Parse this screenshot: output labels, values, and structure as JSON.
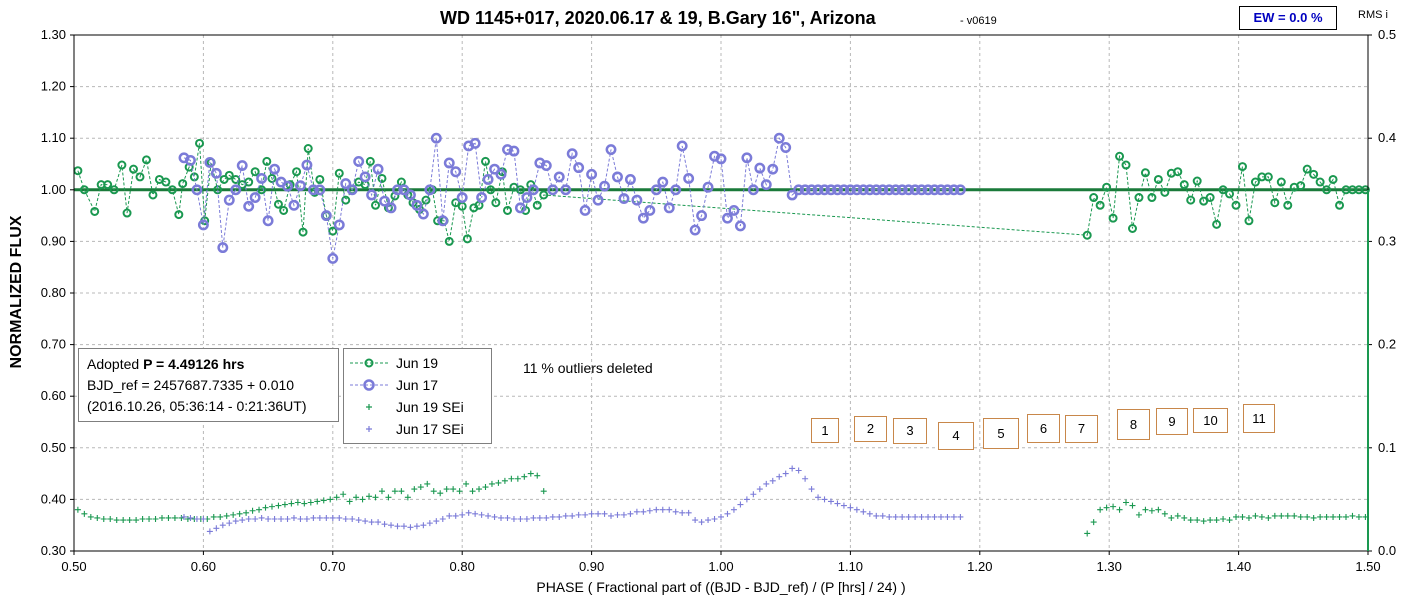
{
  "chart_data": {
    "type": "scatter",
    "title": "WD 1145+017, 2020.06.17 & 19, B.Gary 16\", Arizona",
    "title_suffix": "-  v0619",
    "xlabel": "PHASE ( Fractional part of ((BJD - BJD_ref) / (P [hrs] / 24) )",
    "ylabel": "NORMALIZED FLUX",
    "y2label": "RMS i",
    "xlim": [
      0.5,
      1.5
    ],
    "ylim": [
      0.3,
      1.3
    ],
    "y2lim": [
      0.0,
      0.5
    ],
    "x_ticks": [
      "0.50",
      "0.60",
      "0.70",
      "0.80",
      "0.90",
      "1.00",
      "1.10",
      "1.20",
      "1.30",
      "1.40",
      "1.50"
    ],
    "y_ticks": [
      "0.30",
      "0.40",
      "0.50",
      "0.60",
      "0.70",
      "0.80",
      "0.90",
      "1.00",
      "1.10",
      "1.20",
      "1.30"
    ],
    "y2_ticks": [
      "0.0",
      "0.05",
      "0.1",
      "0.15",
      "0.2",
      "0.25",
      "0.3",
      "0.35",
      "0.4",
      "0.45",
      "0.5"
    ],
    "grid": true,
    "reference_line": 1.0,
    "ew_label": "EW = 0.0 %",
    "outliers_note": "11 % outliers deleted",
    "info": {
      "line1_prefix": "Adopted ",
      "line1_bold": "P = 4.49126 hrs",
      "line2": "BJD_ref = 2457687.7335 + 0.010",
      "line3": "(2016.10.26, 05:36:14 - 0:21:36UT)"
    },
    "legend": {
      "position": "center-left",
      "items": [
        {
          "label": "Jun 19",
          "color": "#1a9850",
          "symbol": "circle-dashed"
        },
        {
          "label": "Jun 17",
          "color": "#7b7bd8",
          "symbol": "circle-dashed-thick"
        },
        {
          "label": "Jun 19 SEi",
          "color": "#1a9850",
          "symbol": "plus"
        },
        {
          "label": "Jun 17 SEi",
          "color": "#7b7bd8",
          "symbol": "plus"
        }
      ]
    },
    "segment_labels": [
      "1",
      "2",
      "3",
      "4",
      "5",
      "6",
      "7",
      "8",
      "9",
      "10",
      "11"
    ],
    "series": [
      {
        "name": "Jun 19",
        "color": "#1a9850",
        "x": [
          0.503,
          0.508,
          0.516,
          0.521,
          0.526,
          0.531,
          0.537,
          0.541,
          0.546,
          0.551,
          0.556,
          0.561,
          0.566,
          0.571,
          0.576,
          0.581,
          0.584,
          0.589,
          0.593,
          0.597,
          0.601,
          0.606,
          0.611,
          0.616,
          0.62,
          0.625,
          0.63,
          0.635,
          0.64,
          0.645,
          0.649,
          0.653,
          0.658,
          0.662,
          0.667,
          0.672,
          0.677,
          0.681,
          0.686,
          0.69,
          0.695,
          0.7,
          0.705,
          0.71,
          0.715,
          0.72,
          0.725,
          0.729,
          0.733,
          0.738,
          0.743,
          0.748,
          0.753,
          0.758,
          0.762,
          0.767,
          0.772,
          0.777,
          0.781,
          0.786,
          0.79,
          0.795,
          0.8,
          0.804,
          0.809,
          0.813,
          0.818,
          0.822,
          0.826,
          0.831,
          0.835,
          0.84,
          0.845,
          0.849,
          0.853,
          0.858,
          0.863,
          1.283,
          1.288,
          1.293,
          1.298,
          1.303,
          1.308,
          1.313,
          1.318,
          1.323,
          1.328,
          1.333,
          1.338,
          1.343,
          1.348,
          1.353,
          1.358,
          1.363,
          1.368,
          1.373,
          1.378,
          1.383,
          1.388,
          1.393,
          1.398,
          1.403,
          1.408,
          1.413,
          1.418,
          1.423,
          1.428,
          1.433,
          1.438,
          1.443,
          1.448,
          1.453,
          1.458,
          1.463,
          1.468,
          1.473,
          1.478,
          1.483,
          1.488,
          1.493,
          1.498
        ],
        "y": [
          1.037,
          1.0,
          0.958,
          1.01,
          1.01,
          1.0,
          1.048,
          0.955,
          1.04,
          1.025,
          1.058,
          0.99,
          1.02,
          1.015,
          1.0,
          0.952,
          1.012,
          1.044,
          1.025,
          1.09,
          0.94,
          1.053,
          1.0,
          1.02,
          1.028,
          1.02,
          1.01,
          1.015,
          1.035,
          1.0,
          1.055,
          1.022,
          0.972,
          0.96,
          1.01,
          1.035,
          0.918,
          1.08,
          0.995,
          1.02,
          0.95,
          0.92,
          1.032,
          0.98,
          1.0,
          1.015,
          1.01,
          1.055,
          0.97,
          1.022,
          0.965,
          0.988,
          1.015,
          0.99,
          0.975,
          0.962,
          0.98,
          1.0,
          0.94,
          0.94,
          0.9,
          0.975,
          0.968,
          0.905,
          0.965,
          0.97,
          1.055,
          1.0,
          0.975,
          1.035,
          0.96,
          1.005,
          1.0,
          0.96,
          1.01,
          0.97,
          0.99,
          0.912,
          0.985,
          0.97,
          1.005,
          0.945,
          1.065,
          1.048,
          0.925,
          0.985,
          1.033,
          0.985,
          1.02,
          0.995,
          1.032,
          1.035,
          1.01,
          0.98,
          1.017,
          0.978,
          0.985,
          0.933,
          1.0,
          0.992,
          0.97,
          1.045,
          0.94,
          1.015,
          1.025,
          1.025,
          0.975,
          1.015,
          0.97,
          1.005,
          1.008,
          1.04,
          1.03,
          1.015,
          1.0,
          1.02,
          0.97,
          1.0,
          1.0,
          1.0,
          1.0
        ],
        "markers": "circle-dashed"
      },
      {
        "name": "Jun 17",
        "color": "#7b7bd8",
        "x": [
          0.585,
          0.59,
          0.595,
          0.6,
          0.605,
          0.61,
          0.615,
          0.62,
          0.625,
          0.63,
          0.635,
          0.64,
          0.645,
          0.65,
          0.655,
          0.66,
          0.665,
          0.67,
          0.675,
          0.68,
          0.685,
          0.69,
          0.695,
          0.7,
          0.705,
          0.71,
          0.715,
          0.72,
          0.725,
          0.73,
          0.735,
          0.74,
          0.745,
          0.75,
          0.755,
          0.76,
          0.765,
          0.77,
          0.775,
          0.78,
          0.785,
          0.79,
          0.795,
          0.8,
          0.805,
          0.81,
          0.815,
          0.82,
          0.825,
          0.83,
          0.835,
          0.84,
          0.845,
          0.85,
          0.855,
          0.86,
          0.865,
          0.87,
          0.875,
          0.88,
          0.885,
          0.89,
          0.895,
          0.9,
          0.905,
          0.91,
          0.915,
          0.92,
          0.925,
          0.93,
          0.935,
          0.94,
          0.945,
          0.95,
          0.955,
          0.96,
          0.965,
          0.97,
          0.975,
          0.98,
          0.985,
          0.99,
          0.995,
          1.0,
          1.005,
          1.01,
          1.015,
          1.02,
          1.025,
          1.03,
          1.035,
          1.04,
          1.045,
          1.05,
          1.055,
          1.06,
          1.065,
          1.07,
          1.075,
          1.08,
          1.085,
          1.09,
          1.095,
          1.1,
          1.105,
          1.11,
          1.115,
          1.12,
          1.125,
          1.13,
          1.135,
          1.14,
          1.145,
          1.15,
          1.155,
          1.16,
          1.165,
          1.17,
          1.175,
          1.18,
          1.185
        ],
        "y": [
          1.062,
          1.057,
          1.0,
          0.932,
          1.053,
          1.032,
          0.888,
          0.98,
          1.0,
          1.047,
          0.968,
          0.985,
          1.022,
          0.94,
          1.04,
          1.015,
          1.007,
          0.97,
          1.008,
          1.048,
          1.0,
          1.0,
          0.95,
          0.867,
          0.932,
          1.012,
          1.0,
          1.055,
          1.025,
          0.99,
          1.04,
          0.978,
          0.965,
          1.0,
          1.0,
          0.99,
          0.97,
          0.953,
          1.0,
          1.1,
          0.94,
          1.052,
          1.035,
          0.985,
          1.085,
          1.09,
          0.985,
          1.02,
          1.04,
          1.03,
          1.078,
          1.075,
          0.965,
          0.985,
          1.0,
          1.052,
          1.047,
          1.0,
          1.025,
          1.0,
          1.07,
          1.043,
          0.96,
          1.03,
          0.98,
          1.007,
          1.078,
          1.025,
          0.983,
          1.02,
          0.98,
          0.945,
          0.96,
          1.0,
          1.015,
          0.965,
          1.0,
          1.085,
          1.022,
          0.922,
          0.95,
          1.005,
          1.065,
          1.06,
          0.945,
          0.96,
          0.93,
          1.062,
          1.0,
          1.042,
          1.01,
          1.04,
          1.1,
          1.082,
          0.99,
          1.0,
          1.0,
          1.0,
          1.0,
          1.0,
          1.0,
          1.0,
          1.0,
          1.0,
          1.0,
          1.0,
          1.0,
          1.0,
          1.0,
          1.0,
          1.0,
          1.0,
          1.0,
          1.0,
          1.0,
          1.0,
          1.0,
          1.0,
          1.0,
          1.0,
          1.0
        ],
        "markers": "circle-dashed-thick"
      },
      {
        "name": "Jun 19 SEi",
        "color": "#1a9850",
        "axis": "right",
        "x": [
          0.503,
          0.508,
          0.513,
          0.518,
          0.523,
          0.528,
          0.533,
          0.538,
          0.543,
          0.548,
          0.553,
          0.558,
          0.563,
          0.568,
          0.573,
          0.578,
          0.583,
          0.588,
          0.593,
          0.598,
          0.603,
          0.608,
          0.613,
          0.618,
          0.623,
          0.628,
          0.633,
          0.638,
          0.643,
          0.648,
          0.653,
          0.658,
          0.663,
          0.668,
          0.673,
          0.678,
          0.683,
          0.688,
          0.693,
          0.698,
          0.703,
          0.708,
          0.713,
          0.718,
          0.723,
          0.728,
          0.733,
          0.738,
          0.743,
          0.748,
          0.753,
          0.758,
          0.763,
          0.768,
          0.773,
          0.778,
          0.783,
          0.788,
          0.793,
          0.798,
          0.803,
          0.808,
          0.813,
          0.818,
          0.823,
          0.828,
          0.833,
          0.838,
          0.843,
          0.848,
          0.853,
          0.858,
          0.863,
          1.283,
          1.288,
          1.293,
          1.298,
          1.303,
          1.308,
          1.313,
          1.318,
          1.323,
          1.328,
          1.333,
          1.338,
          1.343,
          1.348,
          1.353,
          1.358,
          1.363,
          1.368,
          1.373,
          1.378,
          1.383,
          1.388,
          1.393,
          1.398,
          1.403,
          1.408,
          1.413,
          1.418,
          1.423,
          1.428,
          1.433,
          1.438,
          1.443,
          1.448,
          1.453,
          1.458,
          1.463,
          1.468,
          1.473,
          1.478,
          1.483,
          1.488,
          1.493,
          1.498
        ],
        "y": [
          0.04,
          0.036,
          0.033,
          0.032,
          0.031,
          0.031,
          0.03,
          0.03,
          0.03,
          0.03,
          0.031,
          0.031,
          0.031,
          0.032,
          0.032,
          0.032,
          0.032,
          0.031,
          0.031,
          0.031,
          0.031,
          0.033,
          0.033,
          0.034,
          0.035,
          0.036,
          0.037,
          0.039,
          0.04,
          0.042,
          0.043,
          0.044,
          0.045,
          0.046,
          0.047,
          0.046,
          0.047,
          0.048,
          0.049,
          0.05,
          0.052,
          0.055,
          0.048,
          0.052,
          0.05,
          0.053,
          0.052,
          0.058,
          0.052,
          0.058,
          0.058,
          0.052,
          0.06,
          0.062,
          0.065,
          0.058,
          0.056,
          0.06,
          0.06,
          0.058,
          0.065,
          0.058,
          0.06,
          0.062,
          0.065,
          0.066,
          0.068,
          0.07,
          0.07,
          0.072,
          0.075,
          0.073,
          0.058,
          0.017,
          0.028,
          0.04,
          0.042,
          0.043,
          0.04,
          0.047,
          0.044,
          0.035,
          0.04,
          0.039,
          0.04,
          0.036,
          0.032,
          0.034,
          0.032,
          0.03,
          0.03,
          0.029,
          0.03,
          0.03,
          0.031,
          0.03,
          0.033,
          0.033,
          0.032,
          0.034,
          0.033,
          0.032,
          0.034,
          0.034,
          0.034,
          0.034,
          0.033,
          0.033,
          0.032,
          0.033,
          0.033,
          0.033,
          0.033,
          0.033,
          0.034,
          0.033,
          0.033
        ],
        "markers": "plus"
      },
      {
        "name": "Jun 17 SEi",
        "color": "#7b7bd8",
        "axis": "right",
        "x": [
          0.585,
          0.59,
          0.595,
          0.6,
          0.605,
          0.61,
          0.615,
          0.62,
          0.625,
          0.63,
          0.635,
          0.64,
          0.645,
          0.65,
          0.655,
          0.66,
          0.665,
          0.67,
          0.675,
          0.68,
          0.685,
          0.69,
          0.695,
          0.7,
          0.705,
          0.71,
          0.715,
          0.72,
          0.725,
          0.73,
          0.735,
          0.74,
          0.745,
          0.75,
          0.755,
          0.76,
          0.765,
          0.77,
          0.775,
          0.78,
          0.785,
          0.79,
          0.795,
          0.8,
          0.805,
          0.81,
          0.815,
          0.82,
          0.825,
          0.83,
          0.835,
          0.84,
          0.845,
          0.85,
          0.855,
          0.86,
          0.865,
          0.87,
          0.875,
          0.88,
          0.885,
          0.89,
          0.895,
          0.9,
          0.905,
          0.91,
          0.915,
          0.92,
          0.925,
          0.93,
          0.935,
          0.94,
          0.945,
          0.95,
          0.955,
          0.96,
          0.965,
          0.97,
          0.975,
          0.98,
          0.985,
          0.99,
          0.995,
          1.0,
          1.005,
          1.01,
          1.015,
          1.02,
          1.025,
          1.03,
          1.035,
          1.04,
          1.045,
          1.05,
          1.055,
          1.06,
          1.065,
          1.07,
          1.075,
          1.08,
          1.085,
          1.09,
          1.095,
          1.1,
          1.105,
          1.11,
          1.115,
          1.12,
          1.125,
          1.13,
          1.135,
          1.14,
          1.145,
          1.15,
          1.155,
          1.16,
          1.165,
          1.17,
          1.175,
          1.18,
          1.185
        ],
        "y": [
          0.033,
          0.032,
          0.031,
          0.031,
          0.019,
          0.022,
          0.025,
          0.027,
          0.029,
          0.03,
          0.031,
          0.031,
          0.032,
          0.031,
          0.031,
          0.031,
          0.031,
          0.032,
          0.031,
          0.031,
          0.032,
          0.032,
          0.032,
          0.032,
          0.032,
          0.031,
          0.031,
          0.03,
          0.029,
          0.028,
          0.028,
          0.026,
          0.025,
          0.024,
          0.024,
          0.023,
          0.024,
          0.025,
          0.027,
          0.029,
          0.031,
          0.034,
          0.034,
          0.035,
          0.037,
          0.036,
          0.035,
          0.034,
          0.033,
          0.032,
          0.032,
          0.031,
          0.031,
          0.031,
          0.032,
          0.032,
          0.032,
          0.033,
          0.033,
          0.034,
          0.034,
          0.035,
          0.035,
          0.036,
          0.036,
          0.036,
          0.034,
          0.035,
          0.035,
          0.036,
          0.038,
          0.038,
          0.039,
          0.04,
          0.04,
          0.04,
          0.038,
          0.037,
          0.037,
          0.03,
          0.028,
          0.03,
          0.031,
          0.033,
          0.036,
          0.04,
          0.045,
          0.05,
          0.055,
          0.06,
          0.065,
          0.068,
          0.072,
          0.075,
          0.08,
          0.078,
          0.07,
          0.06,
          0.052,
          0.05,
          0.048,
          0.046,
          0.044,
          0.042,
          0.04,
          0.038,
          0.036,
          0.034,
          0.034,
          0.033,
          0.033,
          0.033,
          0.033,
          0.033,
          0.033,
          0.033,
          0.033,
          0.033,
          0.033,
          0.033,
          0.033
        ],
        "markers": "plus"
      }
    ]
  }
}
